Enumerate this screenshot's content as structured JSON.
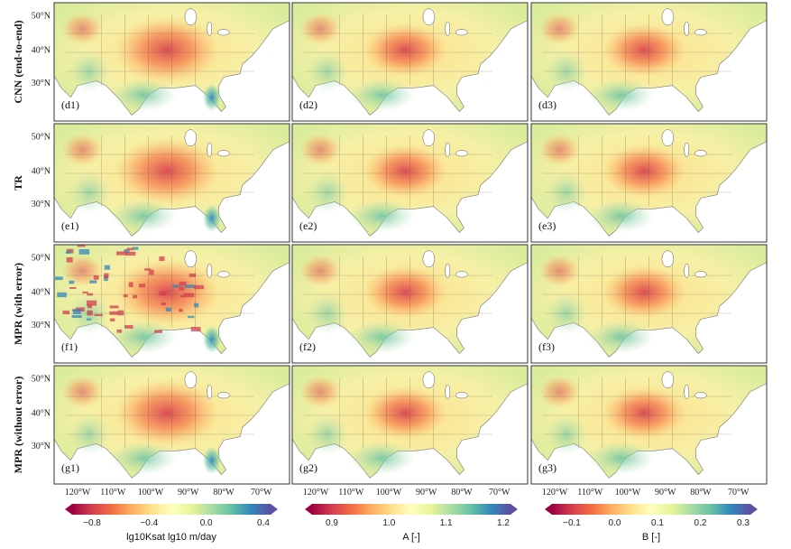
{
  "rows": [
    {
      "title": "CNN (end-to-end)",
      "panels": [
        "(d1)",
        "(d2)",
        "(d3)"
      ]
    },
    {
      "title": "TR",
      "panels": [
        "(e1)",
        "(e2)",
        "(e3)"
      ]
    },
    {
      "title": "MPR (with error)",
      "panels": [
        "(f1)",
        "(f2)",
        "(f3)"
      ]
    },
    {
      "title": "MPR (without error)",
      "panels": [
        "(g1)",
        "(g2)",
        "(g3)"
      ]
    }
  ],
  "lat_ticks": [
    "50°N",
    "40°N",
    "30°N"
  ],
  "lon_ticks": [
    "120°W",
    "110°W",
    "100°W",
    "90°W",
    "80°W",
    "70°W"
  ],
  "colorbars": [
    {
      "title": "lg10Ksat lg10 m/day",
      "ticks": [
        "−0.8",
        "−0.4",
        "0.0",
        "0.4"
      ],
      "palette": "spectral"
    },
    {
      "title": "A  [-]",
      "ticks": [
        "0.9",
        "1.0",
        "1.1",
        "1.2"
      ],
      "palette": "spectral"
    },
    {
      "title": "B  [-]",
      "ticks": [
        "−0.1",
        "0.0",
        "0.1",
        "0.2",
        "0.3"
      ],
      "palette": "spectral"
    }
  ],
  "colors": {
    "frame": "#333333",
    "ocean": "#ffffff",
    "spectral": [
      "#9e0142",
      "#d53e4f",
      "#f46d43",
      "#fdae61",
      "#fee08b",
      "#ffffbf",
      "#e6f598",
      "#abdda4",
      "#66c2a5",
      "#3288bd",
      "#5e4fa2"
    ]
  }
}
